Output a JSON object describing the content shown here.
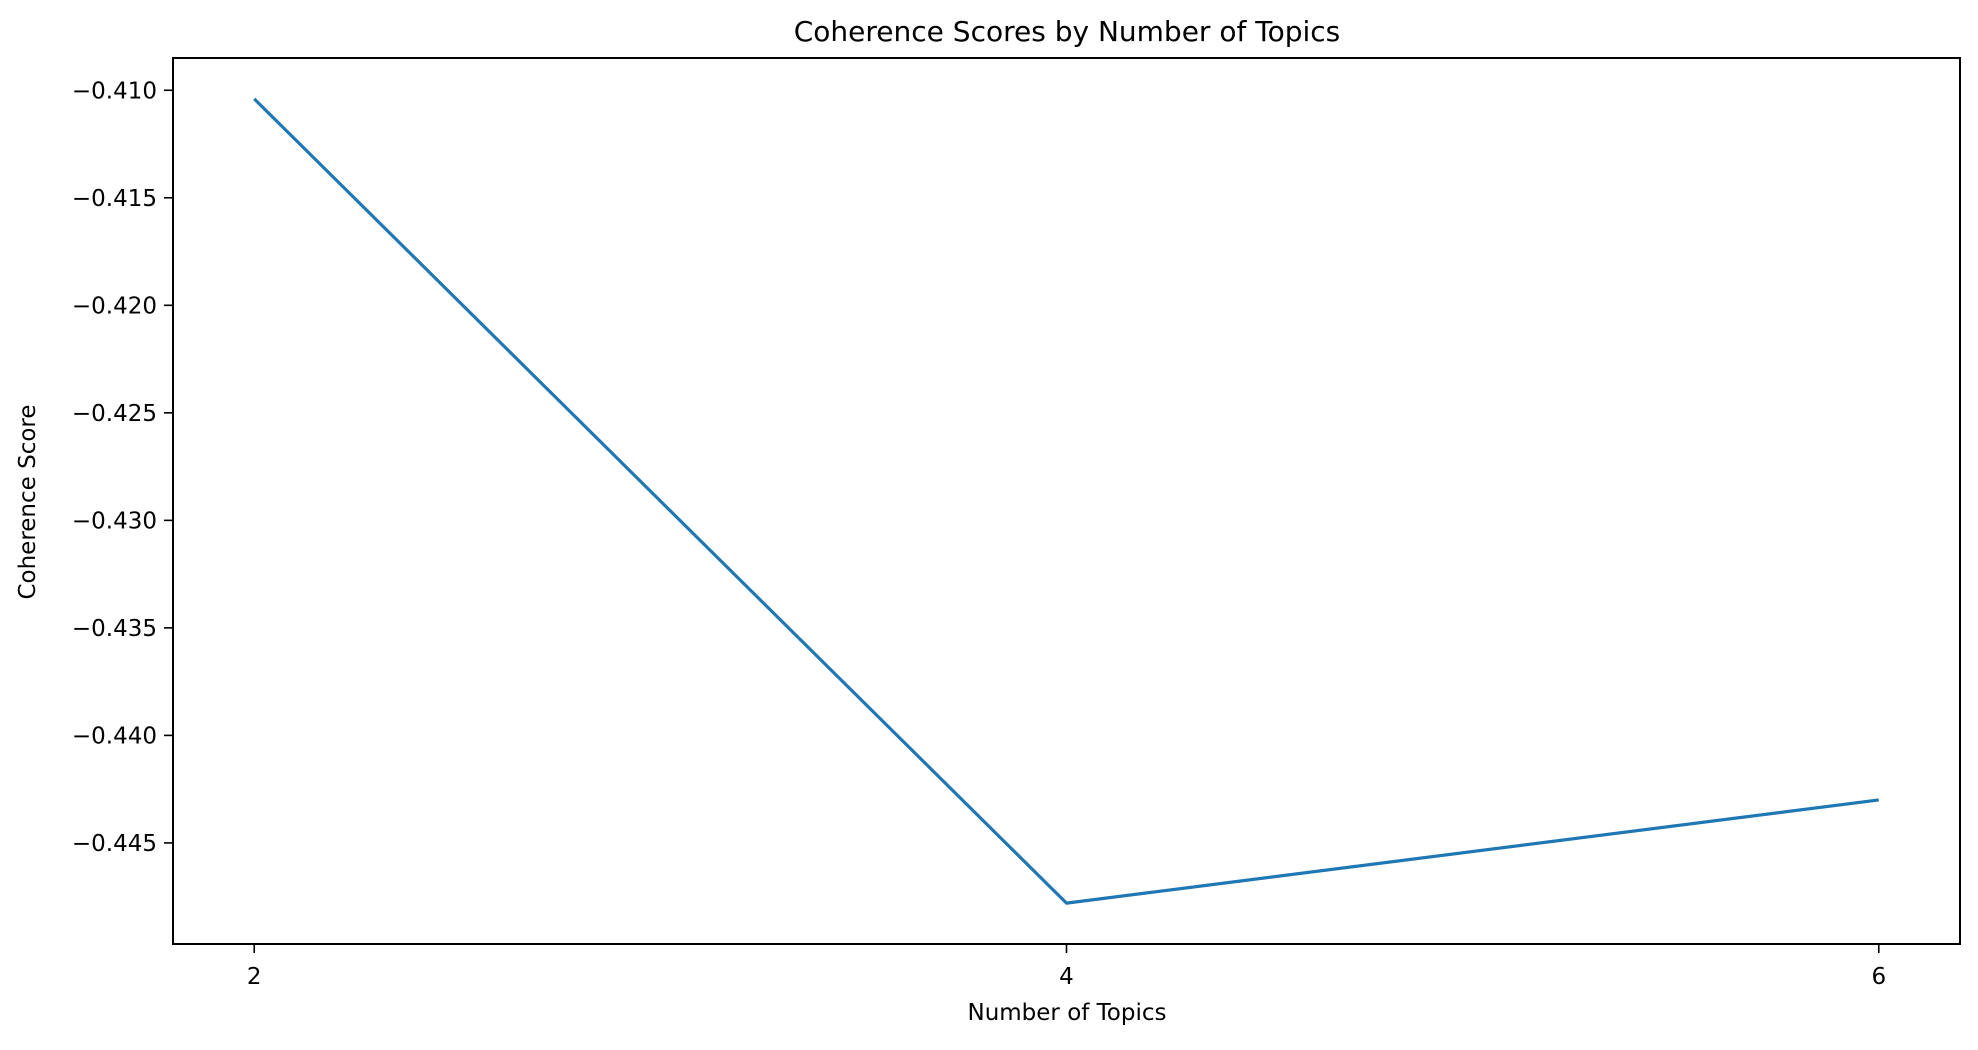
{
  "chart_data": {
    "type": "line",
    "title": "Coherence Scores by Number of Topics",
    "xlabel": "Number of Topics",
    "ylabel": "Coherence Score",
    "xlim": [
      1.8,
      6.2
    ],
    "ylim": [
      -0.4497,
      -0.4085
    ],
    "xticks": [
      2,
      4,
      6
    ],
    "xtick_labels": [
      "2",
      "4",
      "6"
    ],
    "yticks": [
      -0.41,
      -0.415,
      -0.42,
      -0.425,
      -0.43,
      -0.435,
      -0.44,
      -0.445
    ],
    "ytick_labels": [
      "−0.410",
      "−0.415",
      "−0.420",
      "−0.425",
      "−0.430",
      "−0.435",
      "−0.440",
      "−0.445"
    ],
    "grid": false,
    "series": [
      {
        "x": [
          2,
          4,
          6
        ],
        "values": [
          -0.4104,
          -0.4478,
          -0.443
        ],
        "color": "#1f77b4"
      }
    ]
  }
}
